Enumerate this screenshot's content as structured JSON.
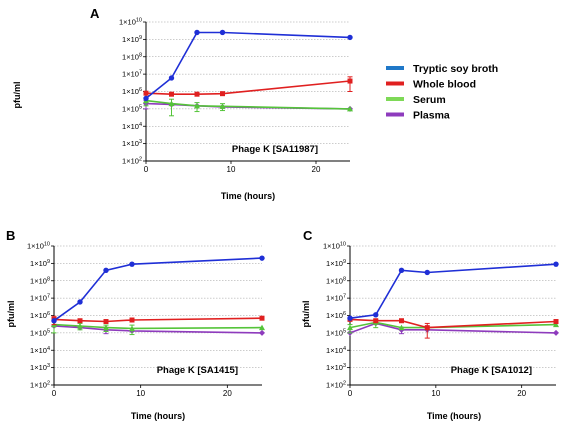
{
  "series_colors": {
    "tsb": "#1f2fd6",
    "blood": "#e02020",
    "serum": "#55c43a",
    "plasma": "#8e3bbd"
  },
  "legend": [
    {
      "key": "tsb",
      "label": "Tryptic soy broth",
      "color": "#1f78c8"
    },
    {
      "key": "blood",
      "label": "Whole blood",
      "color": "#e02020"
    },
    {
      "key": "serum",
      "label": "Serum",
      "color": "#7ed957"
    },
    {
      "key": "plasma",
      "label": "Plasma",
      "color": "#8e3bbd"
    }
  ],
  "chart_data": [
    {
      "type": "line",
      "panel": "A",
      "label": "Phage K [SA11987]",
      "xlabel": "Time (hours)",
      "ylabel": "pfu/ml",
      "yscale": "log",
      "ylim": [
        100,
        10000000000
      ],
      "xlim": [
        0,
        24
      ],
      "xticks": [
        "0",
        "10",
        "20"
      ],
      "yticks": [
        {
          "base": "1×10",
          "exp": "2"
        },
        {
          "base": "1×10",
          "exp": "3"
        },
        {
          "base": "1×10",
          "exp": "4"
        },
        {
          "base": "1×10",
          "exp": "5"
        },
        {
          "base": "1×10",
          "exp": "6"
        },
        {
          "base": "1×10",
          "exp": "7"
        },
        {
          "base": "1×10",
          "exp": "8"
        },
        {
          "base": "1×10",
          "exp": "9"
        },
        {
          "base": "1×10",
          "exp": "10"
        }
      ],
      "grid": "horizontal dotted",
      "series": [
        {
          "key": "tsb",
          "x": [
            0,
            3,
            6,
            9,
            24
          ],
          "y": [
            400000,
            6000000,
            2500000000,
            2500000000,
            1300000000
          ]
        },
        {
          "key": "blood",
          "x": [
            0,
            3,
            6,
            9,
            24
          ],
          "y": [
            800000,
            700000,
            700000,
            750000,
            4000000
          ],
          "err": [
            0,
            0,
            0,
            0,
            3000000
          ]
        },
        {
          "key": "serum",
          "x": [
            0,
            3,
            6,
            9,
            24
          ],
          "y": [
            300000,
            200000,
            150000,
            140000,
            100000
          ],
          "err": [
            150000,
            160000,
            80000,
            60000,
            0
          ]
        },
        {
          "key": "plasma",
          "x": [
            0,
            3,
            6,
            9,
            24
          ],
          "y": [
            200000,
            180000,
            150000,
            130000,
            100000
          ],
          "err": [
            100000,
            0,
            0,
            0,
            0
          ]
        }
      ]
    },
    {
      "type": "line",
      "panel": "B",
      "label": "Phage K [SA1415]",
      "xlabel": "Time (hours)",
      "ylabel": "pfu/ml",
      "yscale": "log",
      "ylim": [
        100,
        10000000000
      ],
      "xlim": [
        0,
        24
      ],
      "xticks": [
        "0",
        "10",
        "20"
      ],
      "yticks": [
        {
          "base": "1×10",
          "exp": "2"
        },
        {
          "base": "1×10",
          "exp": "3"
        },
        {
          "base": "1×10",
          "exp": "4"
        },
        {
          "base": "1×10",
          "exp": "5"
        },
        {
          "base": "1×10",
          "exp": "6"
        },
        {
          "base": "1×10",
          "exp": "7"
        },
        {
          "base": "1×10",
          "exp": "8"
        },
        {
          "base": "1×10",
          "exp": "9"
        },
        {
          "base": "1×10",
          "exp": "10"
        }
      ],
      "grid": "horizontal dotted",
      "series": [
        {
          "key": "tsb",
          "x": [
            0,
            3,
            6,
            9,
            24
          ],
          "y": [
            500000,
            6000000,
            400000000,
            900000000,
            2000000000
          ]
        },
        {
          "key": "blood",
          "x": [
            0,
            3,
            6,
            9,
            24
          ],
          "y": [
            600000,
            500000,
            450000,
            550000,
            700000
          ],
          "err": [
            300000,
            0,
            0,
            0,
            0
          ]
        },
        {
          "key": "serum",
          "x": [
            0,
            3,
            6,
            9,
            24
          ],
          "y": [
            300000,
            250000,
            200000,
            180000,
            200000
          ],
          "err": [
            200000,
            100000,
            80000,
            100000,
            0
          ]
        },
        {
          "key": "plasma",
          "x": [
            0,
            3,
            6,
            9,
            24
          ],
          "y": [
            250000,
            200000,
            150000,
            130000,
            100000
          ],
          "err": [
            0,
            0,
            60000,
            0,
            0
          ]
        }
      ]
    },
    {
      "type": "line",
      "panel": "C",
      "label": "Phage K [SA1012]",
      "xlabel": "Time (hours)",
      "ylabel": "pfu/ml",
      "yscale": "log",
      "ylim": [
        100,
        10000000000
      ],
      "xlim": [
        0,
        24
      ],
      "xticks": [
        "0",
        "10",
        "20"
      ],
      "yticks": [
        {
          "base": "1×10",
          "exp": "2"
        },
        {
          "base": "1×10",
          "exp": "3"
        },
        {
          "base": "1×10",
          "exp": "4"
        },
        {
          "base": "1×10",
          "exp": "5"
        },
        {
          "base": "1×10",
          "exp": "6"
        },
        {
          "base": "1×10",
          "exp": "7"
        },
        {
          "base": "1×10",
          "exp": "8"
        },
        {
          "base": "1×10",
          "exp": "9"
        },
        {
          "base": "1×10",
          "exp": "10"
        }
      ],
      "grid": "horizontal dotted",
      "series": [
        {
          "key": "tsb",
          "x": [
            0,
            3,
            6,
            9,
            24
          ],
          "y": [
            700000,
            1100000,
            400000000,
            300000000,
            900000000
          ]
        },
        {
          "key": "blood",
          "x": [
            0,
            3,
            6,
            9,
            24
          ],
          "y": [
            600000,
            500000,
            500000,
            200000,
            450000
          ],
          "err": [
            0,
            0,
            0,
            150000,
            0
          ]
        },
        {
          "key": "serum",
          "x": [
            0,
            3,
            6,
            9,
            24
          ],
          "y": [
            200000,
            400000,
            200000,
            200000,
            300000
          ],
          "err": [
            100000,
            200000,
            0,
            0,
            0
          ]
        },
        {
          "key": "plasma",
          "x": [
            0,
            3,
            6,
            9,
            24
          ],
          "y": [
            100000,
            350000,
            150000,
            150000,
            100000
          ],
          "err": [
            0,
            0,
            60000,
            0,
            0
          ]
        }
      ]
    }
  ]
}
